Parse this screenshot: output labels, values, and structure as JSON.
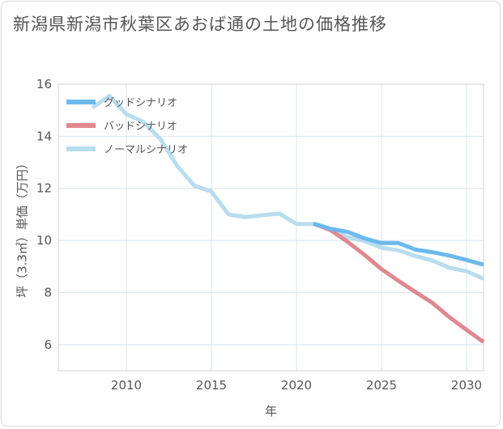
{
  "title": "新潟県新潟市秋葉区あおば通の土地の価格推移",
  "chart_data": {
    "type": "line",
    "title": "新潟県新潟市秋葉区あおば通の土地の価格推移",
    "xlabel": "年",
    "ylabel": "坪（3.3㎡）単価（万円）",
    "xlim": [
      2006,
      2031
    ],
    "ylim": [
      5,
      16
    ],
    "xticks": [
      2010,
      2015,
      2020,
      2025,
      2030
    ],
    "yticks": [
      6,
      8,
      10,
      12,
      14,
      16
    ],
    "grid": true,
    "legend_position": "top-left",
    "series": [
      {
        "name": "グッドシナリオ",
        "color": "#6cb9ec",
        "x": [
          2021,
          2022,
          2023,
          2024,
          2025,
          2026,
          2027,
          2028,
          2029,
          2030,
          2031
        ],
        "y": [
          10.65,
          10.45,
          10.33,
          10.08,
          9.9,
          9.9,
          9.65,
          9.55,
          9.42,
          9.25,
          9.07
        ]
      },
      {
        "name": "バッドシナリオ",
        "color": "#e08890",
        "x": [
          2021,
          2022,
          2023,
          2024,
          2025,
          2026,
          2027,
          2028,
          2029,
          2030,
          2031
        ],
        "y": [
          10.65,
          10.4,
          9.95,
          9.45,
          8.9,
          8.45,
          8.02,
          7.6,
          7.05,
          6.57,
          6.1
        ]
      },
      {
        "name": "ノーマルシナリオ",
        "color": "#b8ddef",
        "x": [
          2008,
          2009,
          2010,
          2011,
          2012,
          2013,
          2014,
          2015,
          2016,
          2017,
          2018,
          2019,
          2020,
          2021,
          2022,
          2023,
          2024,
          2025,
          2026,
          2027,
          2028,
          2029,
          2030,
          2031
        ],
        "y": [
          15.1,
          15.55,
          14.85,
          14.55,
          13.9,
          12.85,
          12.1,
          11.88,
          11.0,
          10.9,
          10.97,
          11.03,
          10.63,
          10.63,
          10.43,
          10.12,
          9.98,
          9.72,
          9.62,
          9.4,
          9.23,
          8.95,
          8.82,
          8.53
        ]
      }
    ]
  }
}
